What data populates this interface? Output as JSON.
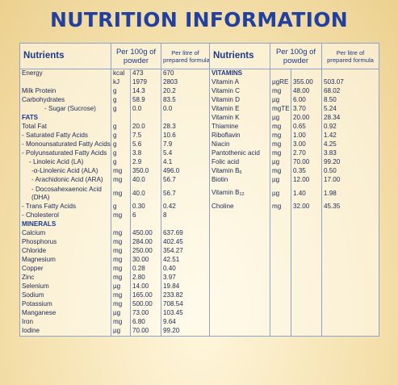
{
  "title": "NUTRITION INFORMATION",
  "headers": {
    "nutrients": "Nutrients",
    "per100g_line1": "Per 100g of",
    "per100g_line2": "powder",
    "perlitre_line1": "Per litre of",
    "perlitre_line2": "prepared formula"
  },
  "left": {
    "energy": {
      "name": "Energy",
      "unit_kcal": "kcal",
      "kcal_100g": "473",
      "kcal_l": "670",
      "unit_kj": "kJ",
      "kj_100g": "1979",
      "kj_l": "2803"
    },
    "milk_protein": {
      "name": "Milk Protein",
      "unit": "g",
      "v100": "14.3",
      "vl": "20.2"
    },
    "carbohydrates": {
      "name": "Carbohydrates",
      "unit": "g",
      "v100": "58.9",
      "vl": "83.5"
    },
    "sugar": {
      "name": "- Sugar (Sucrose)",
      "unit": "g",
      "v100": "0.0",
      "vl": "0.0"
    },
    "fats_header": "FATS",
    "total_fat": {
      "name": "Total Fat",
      "unit": "g",
      "v100": "20.0",
      "vl": "28.3"
    },
    "sfa": {
      "name": "- Saturated Fatty Acids",
      "unit": "g",
      "v100": "7.5",
      "vl": "10.6"
    },
    "mufa": {
      "name": "- Monounsaturated Fatty Acids",
      "unit": "g",
      "v100": "5.6",
      "vl": "7.9"
    },
    "pufa": {
      "name": "- Polyunsaturated Fatty Acids",
      "unit": "g",
      "v100": "3.8",
      "vl": "5.4"
    },
    "la": {
      "name": "- Linoleic Acid (LA)",
      "unit": "g",
      "v100": "2.9",
      "vl": "4.1"
    },
    "ala": {
      "name": "-α-Linolenic Acid (ALA)",
      "unit": "mg",
      "v100": "350.0",
      "vl": "496.0"
    },
    "ara": {
      "name": "- Arachidonic Acid (ARA)",
      "unit": "mg",
      "v100": "40.0",
      "vl": "56.7"
    },
    "dha": {
      "name_line1": "- Docosahexaenoic Acid",
      "name_line2": "(DHA)",
      "unit": "mg",
      "v100": "40.0",
      "vl": "56.7"
    },
    "trans": {
      "name": "- Trans Fatty Acids",
      "unit": "g",
      "v100": "0.30",
      "vl": "0.42"
    },
    "chol": {
      "name": "- Cholesterol",
      "unit": "mg",
      "v100": "6",
      "vl": "8"
    },
    "minerals_header": "MINERALS",
    "minerals": [
      {
        "name": "Calcium",
        "unit": "mg",
        "v100": "450.00",
        "vl": "637.69"
      },
      {
        "name": "Phosphorus",
        "unit": "mg",
        "v100": "284.00",
        "vl": "402.45"
      },
      {
        "name": "Chloride",
        "unit": "mg",
        "v100": "250.00",
        "vl": "354.27"
      },
      {
        "name": "Magnesium",
        "unit": "mg",
        "v100": "30.00",
        "vl": "42.51"
      },
      {
        "name": "Copper",
        "unit": "mg",
        "v100": "0.28",
        "vl": "0.40"
      },
      {
        "name": "Zinc",
        "unit": "mg",
        "v100": "2.80",
        "vl": "3.97"
      },
      {
        "name": "Selenium",
        "unit": "µg",
        "v100": "14.00",
        "vl": "19.84"
      },
      {
        "name": "Sodium",
        "unit": "mg",
        "v100": "165.00",
        "vl": "233.82"
      },
      {
        "name": "Potassium",
        "unit": "mg",
        "v100": "500.00",
        "vl": "708.54"
      },
      {
        "name": "Manganese",
        "unit": "µg",
        "v100": "73.00",
        "vl": "103.45"
      },
      {
        "name": "Iron",
        "unit": "mg",
        "v100": "6.80",
        "vl": "9.64"
      },
      {
        "name": "Iodine",
        "unit": "µg",
        "v100": "70.00",
        "vl": "99.20"
      }
    ]
  },
  "right": {
    "vitamins_header": "VITAMINS",
    "vitamins": [
      {
        "name": "Vitamin A",
        "unit": "µgRE",
        "v100": "355.00",
        "vl": "503.07"
      },
      {
        "name": "Vitamin C",
        "unit": "mg",
        "v100": "48.00",
        "vl": "68.02"
      },
      {
        "name": "Vitamin D",
        "unit": "µg",
        "v100": "6.00",
        "vl": "8.50"
      },
      {
        "name": "Vitamin E",
        "unit": "mgTE",
        "v100": "3.70",
        "vl": "5.24"
      },
      {
        "name": "Vitamin K",
        "unit": "µg",
        "v100": "20.00",
        "vl": "28.34"
      },
      {
        "name": "Thiamine",
        "unit": "mg",
        "v100": "0.65",
        "vl": "0.92"
      },
      {
        "name": "Riboflavin",
        "unit": "mg",
        "v100": "1.00",
        "vl": "1.42"
      },
      {
        "name": "Niacin",
        "unit": "mg",
        "v100": "3.00",
        "vl": "4.25"
      },
      {
        "name": "Pantothenic acid",
        "unit": "mg",
        "v100": "2.70",
        "vl": "3.83"
      },
      {
        "name": "Folic acid",
        "unit": "µg",
        "v100": "70.00",
        "vl": "99.20"
      },
      {
        "name": "Vitamin B",
        "sub": "6",
        "unit": "mg",
        "v100": "0.35",
        "vl": "0.50"
      },
      {
        "name": "Biotin",
        "unit": "µg",
        "v100": "12.00",
        "vl": "17.00"
      },
      {
        "name": "Vitamin B",
        "sub": "12",
        "unit": "µg",
        "v100": "1.40",
        "vl": "1.98"
      },
      {
        "name": "Choline",
        "unit": "mg",
        "v100": "32.00",
        "vl": "45.35"
      }
    ]
  }
}
